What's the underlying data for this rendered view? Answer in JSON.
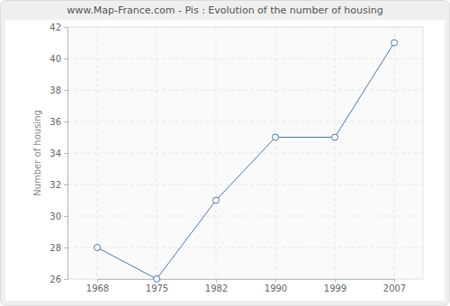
{
  "chart_data": {
    "type": "line",
    "title": "www.Map-France.com - Pis : Evolution of the number of housing",
    "y_label": "Number of housing",
    "categories": [
      "1968",
      "1975",
      "1982",
      "1990",
      "1999",
      "2007"
    ],
    "values": [
      28,
      26,
      31,
      35,
      35,
      41
    ],
    "color": "#4a79a8",
    "marker": "circle",
    "ylim": [
      26,
      42
    ],
    "yticks": [
      26,
      28,
      30,
      32,
      34,
      36,
      38,
      40,
      42
    ],
    "grid": true
  }
}
